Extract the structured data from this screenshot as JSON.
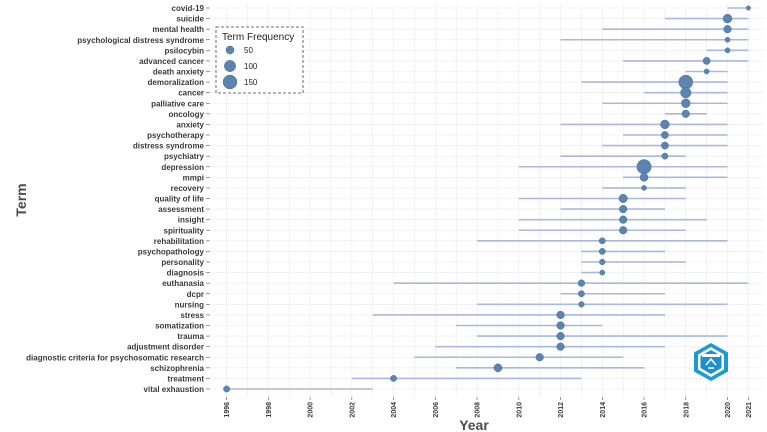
{
  "chart_data": {
    "type": "scatter",
    "subtype": "trend-topics",
    "title": "",
    "xlabel": "Year",
    "ylabel": "Term",
    "xlim": [
      1995.3,
      2021.7
    ],
    "x_ticks": [
      1996,
      1998,
      2000,
      2002,
      2004,
      2006,
      2008,
      2010,
      2012,
      2014,
      2016,
      2018,
      2020,
      2021
    ],
    "legend": {
      "title": "Term Frequency",
      "placement": "top-left",
      "sizes": [
        50,
        100,
        150
      ]
    },
    "colors": {
      "point": "#5b84b1",
      "point_edge": "#4a6f99",
      "line": "#a9b8dc",
      "grid": "#ebebeb",
      "panel": "#ffffff"
    },
    "terms": [
      {
        "term": "covid-19",
        "start": 2020,
        "peak": 2021,
        "end": 2021,
        "frequency": 15
      },
      {
        "term": "suicide",
        "start": 2017,
        "peak": 2020,
        "end": 2021,
        "frequency": 60
      },
      {
        "term": "mental health",
        "start": 2014,
        "peak": 2020,
        "end": 2021,
        "frequency": 45
      },
      {
        "term": "psychological distress syndrome",
        "start": 2012,
        "peak": 2020,
        "end": 2021,
        "frequency": 20
      },
      {
        "term": "psilocybin",
        "start": 2019,
        "peak": 2020,
        "end": 2021,
        "frequency": 20
      },
      {
        "term": "advanced cancer",
        "start": 2015,
        "peak": 2019,
        "end": 2021,
        "frequency": 40
      },
      {
        "term": "death anxiety",
        "start": 2018,
        "peak": 2019,
        "end": 2020,
        "frequency": 20
      },
      {
        "term": "demoralization",
        "start": 2013,
        "peak": 2018,
        "end": 2020,
        "frequency": 150
      },
      {
        "term": "cancer",
        "start": 2016,
        "peak": 2018,
        "end": 2020,
        "frequency": 85
      },
      {
        "term": "palliative care",
        "start": 2014,
        "peak": 2018,
        "end": 2020,
        "frequency": 60
      },
      {
        "term": "oncology",
        "start": 2017,
        "peak": 2018,
        "end": 2019,
        "frequency": 45
      },
      {
        "term": "anxiety",
        "start": 2012,
        "peak": 2017,
        "end": 2020,
        "frequency": 60
      },
      {
        "term": "psychotherapy",
        "start": 2015,
        "peak": 2017,
        "end": 2020,
        "frequency": 40
      },
      {
        "term": "distress syndrome",
        "start": 2014,
        "peak": 2017,
        "end": 2020,
        "frequency": 40
      },
      {
        "term": "psychiatry",
        "start": 2012,
        "peak": 2017,
        "end": 2018,
        "frequency": 30
      },
      {
        "term": "depression",
        "start": 2010,
        "peak": 2016,
        "end": 2020,
        "frequency": 160
      },
      {
        "term": "mmpi",
        "start": 2015,
        "peak": 2016,
        "end": 2020,
        "frequency": 50
      },
      {
        "term": "recovery",
        "start": 2014,
        "peak": 2016,
        "end": 2018,
        "frequency": 20
      },
      {
        "term": "quality of life",
        "start": 2010,
        "peak": 2015,
        "end": 2018,
        "frequency": 55
      },
      {
        "term": "assessment",
        "start": 2012,
        "peak": 2015,
        "end": 2017,
        "frequency": 45
      },
      {
        "term": "insight",
        "start": 2010,
        "peak": 2015,
        "end": 2019,
        "frequency": 45
      },
      {
        "term": "spirituality",
        "start": 2010,
        "peak": 2015,
        "end": 2018,
        "frequency": 45
      },
      {
        "term": "rehabilitation",
        "start": 2008,
        "peak": 2014,
        "end": 2020,
        "frequency": 30
      },
      {
        "term": "psychopathology",
        "start": 2013,
        "peak": 2014,
        "end": 2017,
        "frequency": 30
      },
      {
        "term": "personality",
        "start": 2013,
        "peak": 2014,
        "end": 2018,
        "frequency": 25
      },
      {
        "term": "diagnosis",
        "start": 2013,
        "peak": 2014,
        "end": 2014,
        "frequency": 20
      },
      {
        "term": "euthanasia",
        "start": 2004,
        "peak": 2013,
        "end": 2021,
        "frequency": 35
      },
      {
        "term": "dcpr",
        "start": 2012,
        "peak": 2013,
        "end": 2017,
        "frequency": 30
      },
      {
        "term": "nursing",
        "start": 2008,
        "peak": 2013,
        "end": 2020,
        "frequency": 25
      },
      {
        "term": "stress",
        "start": 2003,
        "peak": 2012,
        "end": 2017,
        "frequency": 45
      },
      {
        "term": "somatization",
        "start": 2007,
        "peak": 2012,
        "end": 2014,
        "frequency": 45
      },
      {
        "term": "trauma",
        "start": 2008,
        "peak": 2012,
        "end": 2020,
        "frequency": 45
      },
      {
        "term": "adjustment disorder",
        "start": 2006,
        "peak": 2012,
        "end": 2017,
        "frequency": 45
      },
      {
        "term": "diagnostic criteria for psychosomatic research",
        "start": 2005,
        "peak": 2011,
        "end": 2015,
        "frequency": 45
      },
      {
        "term": "schizophrenia",
        "start": 2007,
        "peak": 2009,
        "end": 2016,
        "frequency": 50
      },
      {
        "term": "treatment",
        "start": 2002,
        "peak": 2004,
        "end": 2013,
        "frequency": 30
      },
      {
        "term": "vital exhaustion",
        "start": 1996,
        "peak": 1996,
        "end": 2003,
        "frequency": 30
      }
    ]
  }
}
